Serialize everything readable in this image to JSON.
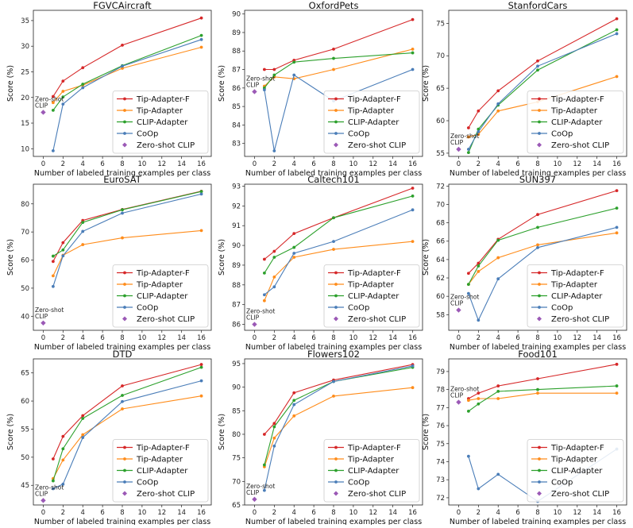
{
  "figure": {
    "ylabel": "Score (%)",
    "xlabel": "Number of labeled training examples per class",
    "zs_label_line1": "Zero-shot",
    "zs_label_line2": "CLIP"
  },
  "legend": [
    {
      "key": "tip_f",
      "label": "Tip-Adapter-F",
      "color": "#d62728"
    },
    {
      "key": "tip",
      "label": "Tip-Adapter",
      "color": "#ff8c1a"
    },
    {
      "key": "clip_adapter",
      "label": "CLIP-Adapter",
      "color": "#2ca02c"
    },
    {
      "key": "coop",
      "label": "CoOp",
      "color": "#4a7db8"
    },
    {
      "key": "zs",
      "label": "Zero-shot CLIP",
      "color": "#9b59b6"
    }
  ],
  "chart_data": [
    {
      "type": "line",
      "title": "FGVCAircraft",
      "x": [
        1,
        2,
        4,
        8,
        16
      ],
      "xlim": [
        -1,
        17
      ],
      "xticks": [
        0,
        2,
        4,
        6,
        8,
        10,
        12,
        14,
        16
      ],
      "ylim": [
        8.5,
        37
      ],
      "yticks": [
        10,
        15,
        20,
        25,
        30,
        35
      ],
      "series": [
        {
          "name": "Tip-Adapter-F",
          "values": [
            20.2,
            23.2,
            25.8,
            30.2,
            35.5
          ]
        },
        {
          "name": "Tip-Adapter",
          "values": [
            19.0,
            21.2,
            22.4,
            25.7,
            29.8
          ]
        },
        {
          "name": "CLIP-Adapter",
          "values": [
            17.5,
            20.1,
            22.6,
            26.2,
            32.1
          ]
        },
        {
          "name": "CoOp",
          "values": [
            9.6,
            18.7,
            21.9,
            26.1,
            31.3
          ]
        }
      ],
      "zero_shot": 17.1
    },
    {
      "type": "line",
      "title": "OxfordPets",
      "x": [
        1,
        2,
        4,
        8,
        16
      ],
      "xlim": [
        -1,
        17
      ],
      "xticks": [
        0,
        2,
        4,
        6,
        8,
        10,
        12,
        14,
        16
      ],
      "ylim": [
        82.3,
        90.2
      ],
      "yticks": [
        83,
        84,
        85,
        86,
        87,
        88,
        89,
        90
      ],
      "series": [
        {
          "name": "Tip-Adapter-F",
          "values": [
            87.0,
            87.0,
            87.5,
            88.1,
            89.7
          ]
        },
        {
          "name": "Tip-Adapter",
          "values": [
            86.1,
            86.6,
            86.5,
            87.0,
            88.1
          ]
        },
        {
          "name": "CLIP-Adapter",
          "values": [
            86.0,
            86.7,
            87.4,
            87.6,
            87.9
          ]
        },
        {
          "name": "CoOp",
          "values": [
            85.9,
            82.6,
            86.7,
            85.3,
            87.0
          ]
        }
      ],
      "zero_shot": 85.8
    },
    {
      "type": "line",
      "title": "StanfordCars",
      "x": [
        1,
        2,
        4,
        8,
        16
      ],
      "xlim": [
        -1,
        17
      ],
      "xticks": [
        0,
        2,
        4,
        6,
        8,
        10,
        12,
        14,
        16
      ],
      "ylim": [
        54.5,
        77
      ],
      "yticks": [
        55,
        60,
        65,
        70,
        75
      ],
      "series": [
        {
          "name": "Tip-Adapter-F",
          "values": [
            58.9,
            61.5,
            64.6,
            69.2,
            75.7
          ]
        },
        {
          "name": "Tip-Adapter",
          "values": [
            57.5,
            57.9,
            61.5,
            62.9,
            66.8
          ]
        },
        {
          "name": "CLIP-Adapter",
          "values": [
            55.1,
            58.7,
            62.4,
            67.8,
            74.0
          ]
        },
        {
          "name": "CoOp",
          "values": [
            55.6,
            58.3,
            62.6,
            68.4,
            73.4
          ]
        }
      ],
      "zero_shot": 55.6
    },
    {
      "type": "line",
      "title": "EuroSAT",
      "x": [
        1,
        2,
        4,
        8,
        16
      ],
      "xlim": [
        -1,
        17
      ],
      "xticks": [
        0,
        2,
        4,
        6,
        8,
        10,
        12,
        14,
        16
      ],
      "ylim": [
        35,
        87
      ],
      "yticks": [
        40,
        50,
        60,
        70,
        80
      ],
      "series": [
        {
          "name": "Tip-Adapter-F",
          "values": [
            59.5,
            66.2,
            74.1,
            78.0,
            84.5
          ]
        },
        {
          "name": "Tip-Adapter",
          "values": [
            54.4,
            61.7,
            65.5,
            67.9,
            70.5
          ]
        },
        {
          "name": "CLIP-Adapter",
          "values": [
            61.4,
            63.6,
            73.4,
            77.9,
            84.4
          ]
        },
        {
          "name": "CoOp",
          "values": [
            50.6,
            61.5,
            70.2,
            76.7,
            83.5
          ]
        }
      ],
      "zero_shot": 37.6
    },
    {
      "type": "line",
      "title": "Caltech101",
      "x": [
        1,
        2,
        4,
        8,
        16
      ],
      "xlim": [
        -1,
        17
      ],
      "xticks": [
        0,
        2,
        4,
        6,
        8,
        10,
        12,
        14,
        16
      ],
      "ylim": [
        85.7,
        93.1
      ],
      "yticks": [
        86,
        87,
        88,
        89,
        90,
        91,
        92,
        93
      ],
      "series": [
        {
          "name": "Tip-Adapter-F",
          "values": [
            89.3,
            89.7,
            90.6,
            91.4,
            92.9
          ]
        },
        {
          "name": "Tip-Adapter",
          "values": [
            87.2,
            88.4,
            89.4,
            89.8,
            90.2
          ]
        },
        {
          "name": "CLIP-Adapter",
          "values": [
            88.6,
            89.4,
            89.9,
            91.4,
            92.5
          ]
        },
        {
          "name": "CoOp",
          "values": [
            87.5,
            87.9,
            89.6,
            90.2,
            91.8
          ]
        }
      ],
      "zero_shot": 86.0
    },
    {
      "type": "line",
      "title": "SUN397",
      "x": [
        1,
        2,
        4,
        8,
        16
      ],
      "xlim": [
        -1,
        17
      ],
      "xticks": [
        0,
        2,
        4,
        6,
        8,
        10,
        12,
        14,
        16
      ],
      "ylim": [
        56.3,
        72.2
      ],
      "yticks": [
        58,
        60,
        62,
        64,
        66,
        68,
        70,
        72
      ],
      "series": [
        {
          "name": "Tip-Adapter-F",
          "values": [
            62.5,
            63.6,
            66.2,
            68.9,
            71.5
          ]
        },
        {
          "name": "Tip-Adapter",
          "values": [
            61.3,
            62.7,
            64.2,
            65.6,
            66.9
          ]
        },
        {
          "name": "CLIP-Adapter",
          "values": [
            61.3,
            63.3,
            66.1,
            67.5,
            69.6
          ]
        },
        {
          "name": "CoOp",
          "values": [
            60.3,
            57.4,
            61.9,
            65.3,
            67.5
          ]
        }
      ],
      "zero_shot": 58.5
    },
    {
      "type": "line",
      "title": "DTD",
      "x": [
        1,
        2,
        4,
        8,
        16
      ],
      "xlim": [
        -1,
        17
      ],
      "xticks": [
        0,
        2,
        4,
        6,
        8,
        10,
        12,
        14,
        16
      ],
      "ylim": [
        41.5,
        67.5
      ],
      "yticks": [
        45,
        50,
        55,
        60,
        65
      ],
      "series": [
        {
          "name": "Tip-Adapter-F",
          "values": [
            49.7,
            53.7,
            57.4,
            62.7,
            66.5
          ]
        },
        {
          "name": "Tip-Adapter",
          "values": [
            46.2,
            49.5,
            54.0,
            58.6,
            60.9
          ]
        },
        {
          "name": "CLIP-Adapter",
          "values": [
            45.8,
            51.5,
            56.9,
            61.0,
            66.0
          ]
        },
        {
          "name": "CoOp",
          "values": [
            44.4,
            45.2,
            53.5,
            59.9,
            63.6
          ]
        }
      ],
      "zero_shot": 42.3
    },
    {
      "type": "line",
      "title": "Flowers102",
      "x": [
        1,
        2,
        4,
        8,
        16
      ],
      "xlim": [
        -1,
        17
      ],
      "xticks": [
        0,
        2,
        4,
        6,
        8,
        10,
        12,
        14,
        16
      ],
      "ylim": [
        65,
        96
      ],
      "yticks": [
        65,
        70,
        75,
        80,
        85,
        90,
        95
      ],
      "series": [
        {
          "name": "Tip-Adapter-F",
          "values": [
            80.0,
            82.3,
            88.8,
            91.5,
            94.8
          ]
        },
        {
          "name": "Tip-Adapter",
          "values": [
            73.1,
            79.2,
            83.9,
            88.1,
            89.9
          ]
        },
        {
          "name": "CLIP-Adapter",
          "values": [
            73.5,
            81.6,
            87.2,
            91.2,
            94.2
          ]
        },
        {
          "name": "CoOp",
          "values": [
            68.1,
            77.5,
            86.3,
            91.2,
            94.5
          ]
        }
      ],
      "zero_shot": 66.2
    },
    {
      "type": "line",
      "title": "Food101",
      "x": [
        1,
        2,
        4,
        8,
        16
      ],
      "xlim": [
        -1,
        17
      ],
      "xticks": [
        0,
        2,
        4,
        6,
        8,
        10,
        12,
        14,
        16
      ],
      "ylim": [
        71.6,
        79.7
      ],
      "yticks": [
        72,
        73,
        74,
        75,
        76,
        77,
        78,
        79
      ],
      "series": [
        {
          "name": "Tip-Adapter-F",
          "values": [
            77.5,
            77.8,
            78.2,
            78.6,
            79.4
          ]
        },
        {
          "name": "Tip-Adapter",
          "values": [
            77.4,
            77.5,
            77.5,
            77.8,
            77.8
          ]
        },
        {
          "name": "CLIP-Adapter",
          "values": [
            76.8,
            77.2,
            77.9,
            78.0,
            78.2
          ]
        },
        {
          "name": "CoOp",
          "values": [
            74.3,
            72.5,
            73.3,
            71.8,
            74.7
          ]
        }
      ],
      "zero_shot": 77.3
    }
  ]
}
